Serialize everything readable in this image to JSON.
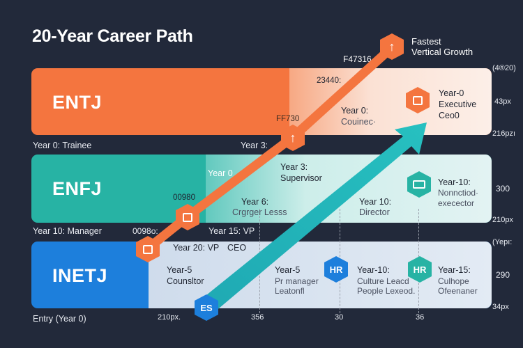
{
  "title": "20-Year Career Path",
  "callout": {
    "line1": "Fastest",
    "line2": "Vertical Growth"
  },
  "top_codes": {
    "a": "F47316",
    "b": "23440:",
    "c": "FF730"
  },
  "bands": {
    "entj": {
      "name": "ENTJ",
      "color": "#f4753f",
      "light": "#fbe6da",
      "labels": {
        "y0": "Year 0:",
        "y0b": "Couinec·",
        "yexec1": "Year-0",
        "yexec2": "Executive",
        "yexec3": "Ceo0",
        "y3": "Year 3:"
      },
      "right_top": "(4®20)",
      "right_mid": "43px",
      "right_bot": "216pzı",
      "row_label": "Year 0: Trainee"
    },
    "enfj": {
      "name": "ENFJ",
      "color": "#27b3a4",
      "light": "#d7efee",
      "labels": {
        "y0": "Year 0",
        "y3a": "Year 3:",
        "y3b": "Supervisor",
        "y6a": "Year 6:",
        "y6b": "Crgrger Lesss",
        "y10a": "Year 10:",
        "y10b": "Director",
        "y10ra": "Year-10:",
        "y10rb": "Nonnctiod·",
        "y10rc": "execector",
        "code": "00980"
      },
      "right_top": "300",
      "right_bot": "210px",
      "row_label": "Year 10: Manager"
    },
    "inetj": {
      "name": "INETJ",
      "color": "#1d7fdc",
      "light": "#dfe8f3",
      "labels": {
        "y15": "Year 15: VP",
        "y20": "Year 20: VP",
        "ceo": "CEO",
        "y5a": "Year-5",
        "y5b": "Counsltor",
        "y5ma": "Year-5",
        "y5mb": "Pr manager",
        "y5mc": "Leatonfl",
        "y10a": "Year-10:",
        "y10b": "Culture Leacd",
        "y10c": "People Lexeod.",
        "y15a": "Year-15:",
        "y15b": "Culhope",
        "y15c": "Ofeenaner",
        "code": "0098o:"
      },
      "right_top": "(Yepı:",
      "right_mid": "290",
      "right_bot": "34px",
      "row_label": "Entry (Year 0)"
    }
  },
  "axis": {
    "a": "210px.",
    "b": "356",
    "c": "30",
    "d": "36"
  },
  "badges": {
    "hr": "HR",
    "es": "ES"
  },
  "icons": [
    "arrow-up-icon",
    "briefcase-icon",
    "device-icon",
    "hr-badge-icon",
    "es-badge-icon"
  ]
}
